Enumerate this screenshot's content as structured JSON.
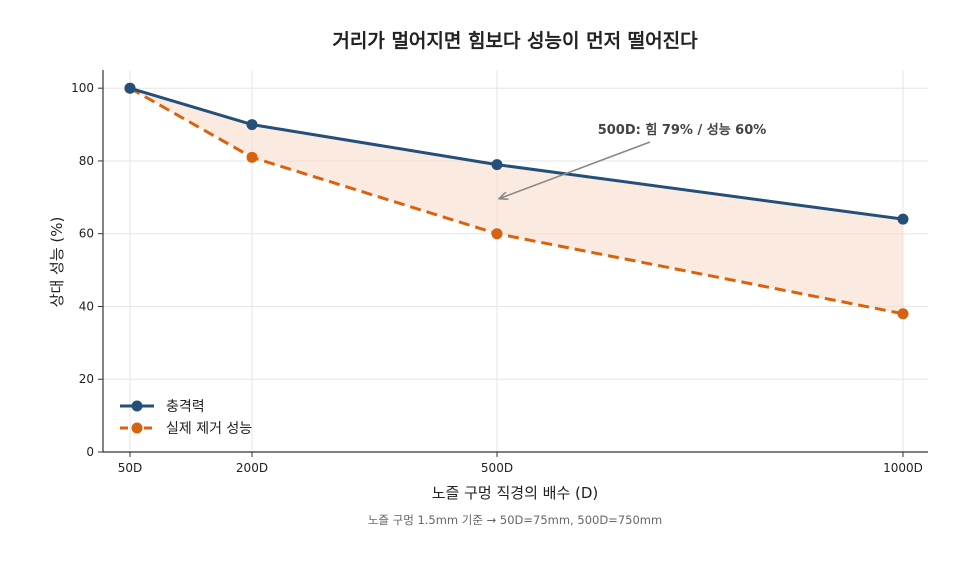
{
  "chart_data": {
    "type": "line",
    "title": "거리가 멀어지면 힘보다 성능이 먼저 떨어진다",
    "xlabel": "노즐 구멍 직경의 배수 (D)",
    "ylabel": "상대 성능 (%)",
    "x": [
      50,
      200,
      500,
      1000
    ],
    "x_tick_labels": [
      "50D",
      "200D",
      "500D",
      "1000D"
    ],
    "y_ticks": [
      0,
      20,
      40,
      60,
      80,
      100
    ],
    "ylim": [
      0,
      105
    ],
    "grid": true,
    "legend_position": "lower-left",
    "series": [
      {
        "name": "충격력",
        "values": [
          100,
          90,
          79,
          64
        ],
        "color": "#244f78",
        "style": "solid"
      },
      {
        "name": "실제 제거 성능",
        "values": [
          100,
          81,
          60,
          38
        ],
        "color": "#d9620f",
        "style": "dashed"
      }
    ],
    "fill_between": {
      "color": "#f6dccb"
    },
    "annotation": {
      "text": "500D: 힘 79% / 성능 60%",
      "x": 500,
      "y": 70
    },
    "note": "노즐 구멍 1.5mm 기준 → 50D=75mm, 500D=750mm"
  }
}
